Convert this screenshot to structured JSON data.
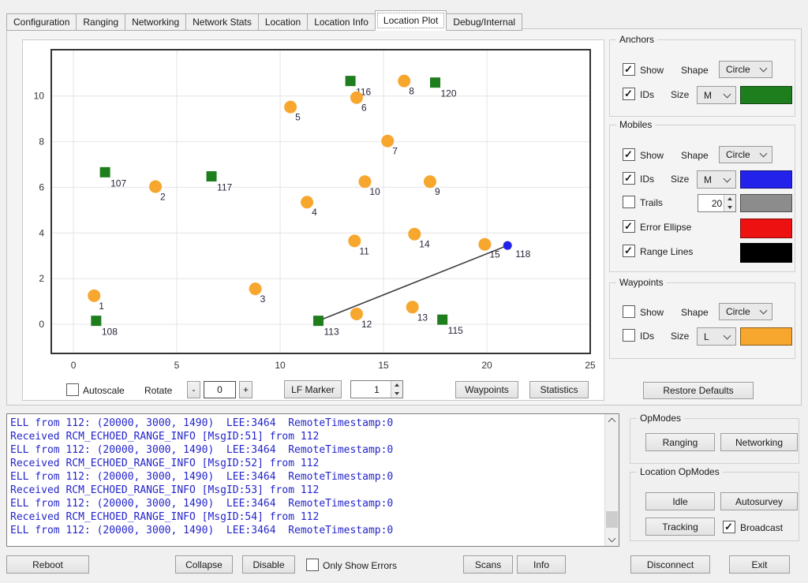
{
  "tabs": {
    "items": [
      "Configuration",
      "Ranging",
      "Networking",
      "Network Stats",
      "Location",
      "Location Info",
      "Location Plot",
      "Debug/Internal"
    ],
    "selected": "Location Plot"
  },
  "chart_data": {
    "type": "scatter",
    "title": "",
    "xlabel": "",
    "ylabel": "",
    "xlim": [
      -1.07,
      25
    ],
    "ylim": [
      -1.28,
      12.03
    ],
    "x_ticks": [
      0,
      5,
      10,
      15,
      20,
      25
    ],
    "y_ticks": [
      0,
      2,
      4,
      6,
      8,
      10
    ],
    "grid": true,
    "series": [
      {
        "name": "anchors",
        "marker": "square",
        "color": "#1e7e1e",
        "marker_px": 13,
        "label_dx": 7,
        "label_dy": 18,
        "points": [
          {
            "id": "107",
            "x": 1.53,
            "y": 6.66
          },
          {
            "id": "117",
            "x": 6.68,
            "y": 6.48
          },
          {
            "id": "116",
            "x": 13.4,
            "y": 10.66
          },
          {
            "id": "120",
            "x": 17.5,
            "y": 10.59
          },
          {
            "id": "108",
            "x": 1.1,
            "y": 0.15
          },
          {
            "id": "113",
            "x": 11.85,
            "y": 0.15
          },
          {
            "id": "115",
            "x": 17.85,
            "y": 0.2
          }
        ]
      },
      {
        "name": "mobiles",
        "marker": "circle",
        "color": "#f7a62e",
        "marker_px": 16,
        "label_dx": 6,
        "label_dy": 17,
        "points": [
          {
            "id": "1",
            "x": 1.0,
            "y": 1.25
          },
          {
            "id": "2",
            "x": 3.97,
            "y": 6.03
          },
          {
            "id": "3",
            "x": 8.8,
            "y": 1.55
          },
          {
            "id": "4",
            "x": 11.3,
            "y": 5.35
          },
          {
            "id": "5",
            "x": 10.5,
            "y": 9.52
          },
          {
            "id": "6",
            "x": 13.7,
            "y": 9.93
          },
          {
            "id": "7",
            "x": 15.2,
            "y": 8.03
          },
          {
            "id": "8",
            "x": 16.0,
            "y": 10.66
          },
          {
            "id": "9",
            "x": 17.25,
            "y": 6.25
          },
          {
            "id": "10",
            "x": 14.1,
            "y": 6.25
          },
          {
            "id": "11",
            "x": 13.6,
            "y": 3.65
          },
          {
            "id": "12",
            "x": 13.7,
            "y": 0.45
          },
          {
            "id": "13",
            "x": 16.4,
            "y": 0.75
          },
          {
            "id": "14",
            "x": 16.5,
            "y": 3.95
          },
          {
            "id": "15",
            "x": 19.9,
            "y": 3.5
          }
        ]
      },
      {
        "name": "selected-mobile",
        "marker": "circle",
        "color": "#2222eb",
        "marker_px": 11,
        "label_dx": 10,
        "label_dy": 15,
        "points": [
          {
            "id": "118",
            "x": 21.0,
            "y": 3.45
          }
        ]
      }
    ],
    "range_lines": [
      {
        "from": [
          11.85,
          0.15
        ],
        "to": [
          21.0,
          3.45
        ]
      }
    ]
  },
  "plot_controls": {
    "autoscale_label": "Autoscale",
    "autoscale_checked": false,
    "rotate_label": "Rotate",
    "rotate_minus": "-",
    "rotate_value": "0",
    "rotate_plus": "+",
    "lf_marker_button": "LF Marker",
    "lf_marker_value": "1",
    "waypoints_button": "Waypoints",
    "statistics_button": "Statistics",
    "restore_defaults_button": "Restore Defaults"
  },
  "anchors_group": {
    "title": "Anchors",
    "show_label": "Show",
    "show_checked": true,
    "shape_label": "Shape",
    "shape_value": "Circle",
    "ids_label": "IDs",
    "ids_checked": true,
    "size_label": "Size",
    "size_value": "M",
    "color": "#1e7e1e"
  },
  "mobiles_group": {
    "title": "Mobiles",
    "show_label": "Show",
    "show_checked": true,
    "shape_label": "Shape",
    "shape_value": "Circle",
    "ids_label": "IDs",
    "ids_checked": true,
    "size_label": "Size",
    "size_value": "M",
    "color": "#2222eb",
    "trails_label": "Trails",
    "trails_checked": false,
    "trails_value": "20",
    "trails_color": "#8c8c8c",
    "error_ellipse_label": "Error Ellipse",
    "error_ellipse_checked": true,
    "error_ellipse_color": "#ee1111",
    "range_lines_label": "Range Lines",
    "range_lines_checked": true,
    "range_lines_color": "#000000"
  },
  "waypoints_group": {
    "title": "Waypoints",
    "show_label": "Show",
    "show_checked": false,
    "shape_label": "Shape",
    "shape_value": "Circle",
    "ids_label": "IDs",
    "ids_checked": false,
    "size_label": "Size",
    "size_value": "L",
    "color": "#f7a62e"
  },
  "log": {
    "lines": [
      "ELL from 112: (20000, 3000, 1490)  LEE:3464  RemoteTimestamp:0",
      "Received RCM_ECHOED_RANGE_INFO [MsgID:51] from 112",
      "ELL from 112: (20000, 3000, 1490)  LEE:3464  RemoteTimestamp:0",
      "Received RCM_ECHOED_RANGE_INFO [MsgID:52] from 112",
      "ELL from 112: (20000, 3000, 1490)  LEE:3464  RemoteTimestamp:0",
      "Received RCM_ECHOED_RANGE_INFO [MsgID:53] from 112",
      "ELL from 112: (20000, 3000, 1490)  LEE:3464  RemoteTimestamp:0",
      "Received RCM_ECHOED_RANGE_INFO [MsgID:54] from 112",
      "ELL from 112: (20000, 3000, 1490)  LEE:3464  RemoteTimestamp:0"
    ]
  },
  "opmodes": {
    "title": "OpModes",
    "ranging_button": "Ranging",
    "networking_button": "Networking"
  },
  "location_opmodes": {
    "title": "Location OpModes",
    "idle_button": "Idle",
    "autosurvey_button": "Autosurvey",
    "tracking_button": "Tracking",
    "broadcast_label": "Broadcast",
    "broadcast_checked": true
  },
  "bottom_bar": {
    "reboot_button": "Reboot",
    "collapse_button": "Collapse",
    "disable_button": "Disable",
    "only_show_errors_label": "Only Show Errors",
    "only_show_errors_checked": false,
    "scans_button": "Scans",
    "info_button": "Info",
    "disconnect_button": "Disconnect",
    "exit_button": "Exit"
  }
}
